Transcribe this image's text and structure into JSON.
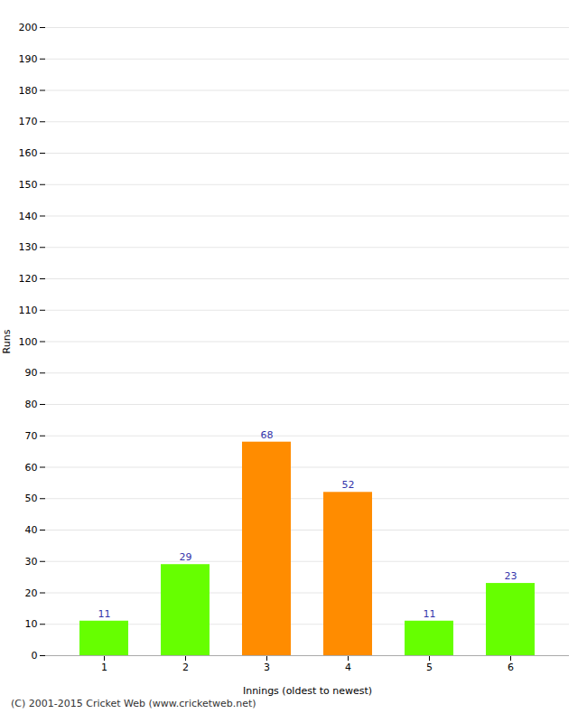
{
  "chart_data": {
    "type": "bar",
    "categories": [
      "1",
      "2",
      "3",
      "4",
      "5",
      "6"
    ],
    "values": [
      11,
      29,
      68,
      52,
      11,
      23
    ],
    "colors": [
      "#66ff00",
      "#66ff00",
      "#ff8c00",
      "#ff8c00",
      "#66ff00",
      "#66ff00"
    ],
    "xlabel": "Innings (oldest to newest)",
    "ylabel": "Runs",
    "ylim": [
      0,
      200
    ],
    "yticks": [
      0,
      10,
      20,
      30,
      40,
      50,
      60,
      70,
      80,
      90,
      100,
      110,
      120,
      130,
      140,
      150,
      160,
      170,
      180,
      190,
      200
    ],
    "grid": true,
    "data_labels": true,
    "footer": "(C) 2001-2015 Cricket Web (www.cricketweb.net)"
  }
}
